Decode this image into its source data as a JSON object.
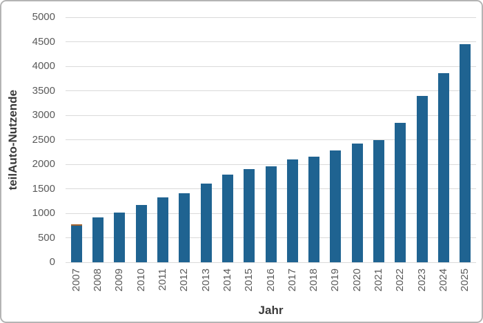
{
  "chart_data": {
    "type": "bar",
    "title": "",
    "xlabel": "Jahr",
    "ylabel": "teilAuto-Nutzende",
    "categories": [
      "2007",
      "2008",
      "2009",
      "2010",
      "2011",
      "2012",
      "2013",
      "2014",
      "2015",
      "2016",
      "2017",
      "2018",
      "2019",
      "2020",
      "2021",
      "2022",
      "2023",
      "2024",
      "2025"
    ],
    "values": [
      775,
      915,
      1020,
      1165,
      1320,
      1410,
      1600,
      1795,
      1900,
      1960,
      2100,
      2160,
      2285,
      2425,
      2490,
      2850,
      3390,
      3865,
      4455
    ],
    "ylim": [
      0,
      5000
    ],
    "yticks": [
      0,
      500,
      1000,
      1500,
      2000,
      2500,
      3000,
      3500,
      4000,
      4500,
      5000
    ],
    "grid": true,
    "legend": false,
    "x_tick_rotation_deg": 90,
    "colors": {
      "bar": "#1f6391",
      "bar_2007_top_stripe": "#a4632e",
      "gridline": "#d9d9d9",
      "tick_label": "#595959",
      "axis_title": "#3a3a3a",
      "frame_border": "#b4b4b4",
      "background": "#ffffff"
    }
  }
}
